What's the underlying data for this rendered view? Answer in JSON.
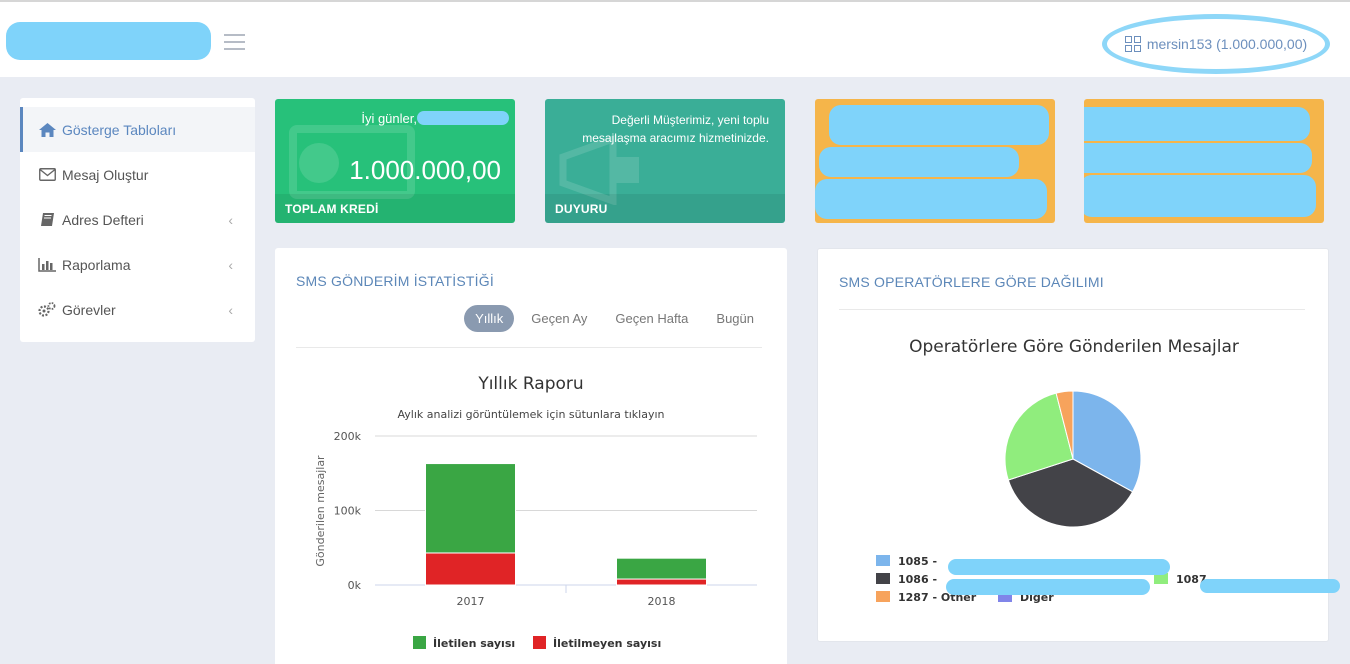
{
  "header": {
    "user_label": "mersin153 (1.000.000,00)"
  },
  "sidebar": {
    "items": [
      {
        "label": "Gösterge Tabloları",
        "icon": "home-icon"
      },
      {
        "label": "Mesaj Oluştur",
        "icon": "envelope-icon"
      },
      {
        "label": "Adres Defteri",
        "icon": "book-icon"
      },
      {
        "label": "Raporlama",
        "icon": "bar-chart-icon"
      },
      {
        "label": "Görevler",
        "icon": "cogs-icon"
      }
    ]
  },
  "stats": {
    "credit": {
      "greeting": "İyi günler,",
      "value": "1.000.000,00",
      "label": "TOPLAM KREDİ"
    },
    "announcement": {
      "text_line1": "Değerli Müşterimiz, yeni toplu",
      "text_line2": "mesajlaşma aracımız hizmetinizde.",
      "label": "DUYURU"
    }
  },
  "sms_panel": {
    "title": "SMS GÖNDERİM İSTATİSTİĞİ",
    "tabs": [
      "Yıllık",
      "Geçen Ay",
      "Geçen Hafta",
      "Bugün"
    ],
    "active_tab": "Yıllık"
  },
  "operator_panel": {
    "title": "SMS OPERATÖRLERE GÖRE DAĞILIMI"
  },
  "chart_data": [
    {
      "type": "bar",
      "stacked": true,
      "title": "Yıllık Raporu",
      "subtitle": "Aylık analizi görüntülemek için sütunlara tıklayın",
      "ylabel": "Gönderilen mesajlar",
      "xlabel": "",
      "categories": [
        "2017",
        "2018"
      ],
      "yticks": [
        "0k",
        "100k",
        "200k"
      ],
      "ylim": [
        0,
        200000
      ],
      "legend_position": "bottom",
      "series": [
        {
          "name": "İletilen sayısı",
          "values": [
            120000,
            28000
          ],
          "color": "#3aa644"
        },
        {
          "name": "İletilmeyen sayısı",
          "values": [
            43000,
            8000
          ],
          "color": "#e02426"
        }
      ]
    },
    {
      "type": "pie",
      "title": "Operatörlere Göre Gönderilen Mesajlar",
      "legend_position": "bottom",
      "labels": [
        "1085 -",
        "1086 -",
        "1087",
        "1287 - Other",
        "Diğer"
      ],
      "values": [
        33,
        37,
        26,
        4,
        0
      ],
      "colors": [
        "#7cb5ec",
        "#434348",
        "#90ed7d",
        "#f7a35c",
        "#8085e9"
      ]
    }
  ]
}
